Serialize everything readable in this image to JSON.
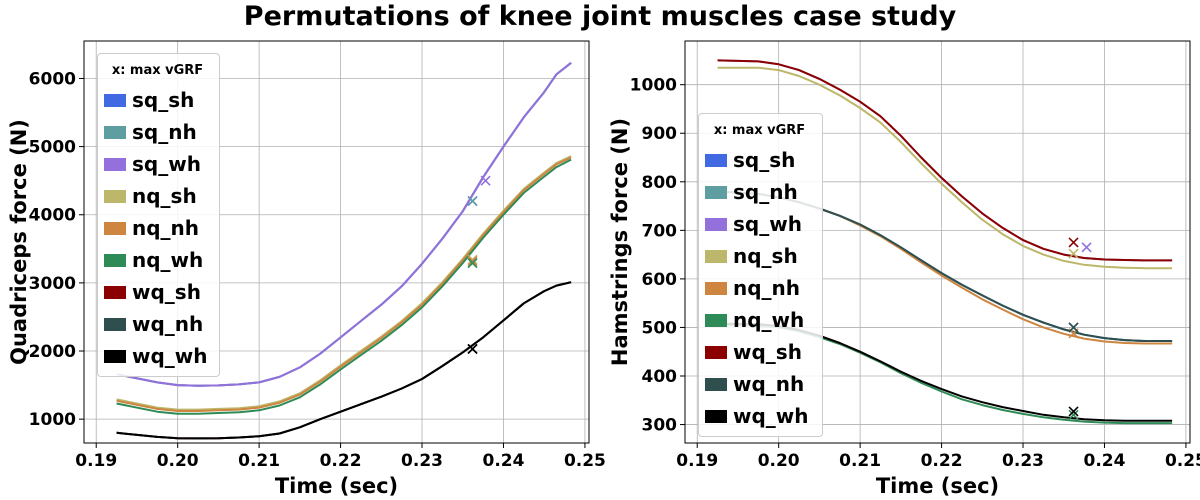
{
  "title": "Permutations of knee joint muscles case study",
  "legend": {
    "title": "x: max vGRF",
    "entries": [
      {
        "label": "sq_sh",
        "color": "#4169e1"
      },
      {
        "label": "sq_nh",
        "color": "#5f9ea0"
      },
      {
        "label": "sq_wh",
        "color": "#9370db"
      },
      {
        "label": "nq_sh",
        "color": "#bdb76b"
      },
      {
        "label": "nq_nh",
        "color": "#cd853f"
      },
      {
        "label": "nq_wh",
        "color": "#2e8b57"
      },
      {
        "label": "wq_sh",
        "color": "#8b0000"
      },
      {
        "label": "wq_nh",
        "color": "#2f4f4f"
      },
      {
        "label": "wq_wh",
        "color": "#000000"
      }
    ]
  },
  "chart_data": [
    {
      "type": "line",
      "xlabel": "Time (sec)",
      "ylabel": "Quadriceps force (N)",
      "xlim": [
        0.1885,
        0.2505
      ],
      "ylim": [
        650,
        6550
      ],
      "xticks": [
        0.19,
        0.2,
        0.21,
        0.22,
        0.23,
        0.24,
        0.25
      ],
      "xtick_labels": [
        "0.19",
        "0.20",
        "0.21",
        "0.22",
        "0.23",
        "0.24",
        "0.25"
      ],
      "yticks": [
        1000,
        2000,
        3000,
        4000,
        5000,
        6000
      ],
      "ytick_labels": [
        "1000",
        "2000",
        "3000",
        "4000",
        "5000",
        "6000"
      ],
      "grid": true,
      "legend_position": "upper-left",
      "x": [
        0.1925,
        0.1975,
        0.2,
        0.2025,
        0.205,
        0.2075,
        0.21,
        0.2125,
        0.215,
        0.2175,
        0.22,
        0.2225,
        0.225,
        0.2275,
        0.23,
        0.2325,
        0.235,
        0.2375,
        0.24,
        0.2425,
        0.245,
        0.2465,
        0.2483
      ],
      "series": [
        {
          "name": "sq_sh",
          "values": [
            1660,
            1540,
            1500,
            1490,
            1495,
            1510,
            1540,
            1620,
            1760,
            1960,
            2200,
            2440,
            2680,
            2950,
            3280,
            3650,
            4050,
            4550,
            5000,
            5430,
            5800,
            6060,
            6230
          ],
          "marker": [
            0.2362,
            4200
          ]
        },
        {
          "name": "sq_nh",
          "values": [
            1660,
            1540,
            1500,
            1490,
            1495,
            1510,
            1540,
            1620,
            1760,
            1960,
            2200,
            2440,
            2680,
            2950,
            3280,
            3650,
            4050,
            4550,
            5000,
            5430,
            5800,
            6060,
            6230
          ],
          "marker": [
            0.2362,
            4200
          ]
        },
        {
          "name": "sq_wh",
          "values": [
            1660,
            1540,
            1500,
            1490,
            1495,
            1510,
            1540,
            1620,
            1760,
            1960,
            2200,
            2440,
            2680,
            2950,
            3280,
            3650,
            4050,
            4550,
            5000,
            5430,
            5800,
            6060,
            6230
          ],
          "marker": [
            0.2378,
            4500
          ]
        },
        {
          "name": "nq_sh",
          "values": [
            1290,
            1170,
            1140,
            1140,
            1150,
            1160,
            1190,
            1260,
            1380,
            1570,
            1790,
            2000,
            2210,
            2440,
            2700,
            3010,
            3350,
            3720,
            4060,
            4380,
            4620,
            4760,
            4860
          ],
          "marker": [
            0.2362,
            3340
          ]
        },
        {
          "name": "nq_nh",
          "values": [
            1270,
            1150,
            1120,
            1120,
            1130,
            1140,
            1170,
            1240,
            1360,
            1550,
            1770,
            1980,
            2190,
            2420,
            2680,
            2990,
            3330,
            3700,
            4040,
            4360,
            4600,
            4740,
            4840
          ],
          "marker": [
            0.2362,
            3320
          ]
        },
        {
          "name": "nq_wh",
          "values": [
            1230,
            1110,
            1080,
            1080,
            1090,
            1100,
            1130,
            1200,
            1320,
            1510,
            1730,
            1940,
            2150,
            2380,
            2640,
            2950,
            3290,
            3660,
            4000,
            4320,
            4560,
            4700,
            4810
          ],
          "marker": [
            0.2362,
            3290
          ]
        },
        {
          "name": "wq_sh",
          "values": [
            800,
            740,
            720,
            718,
            720,
            730,
            750,
            790,
            880,
            1000,
            1110,
            1220,
            1330,
            1450,
            1590,
            1780,
            1980,
            2200,
            2450,
            2700,
            2880,
            2960,
            3010
          ],
          "marker": [
            0.2362,
            2030
          ]
        },
        {
          "name": "wq_nh",
          "values": [
            800,
            740,
            720,
            718,
            720,
            730,
            750,
            790,
            880,
            1000,
            1110,
            1220,
            1330,
            1450,
            1590,
            1780,
            1980,
            2200,
            2450,
            2700,
            2880,
            2960,
            3010
          ],
          "marker": [
            0.2362,
            2030
          ]
        },
        {
          "name": "wq_wh",
          "values": [
            800,
            740,
            720,
            718,
            720,
            730,
            750,
            790,
            880,
            1000,
            1110,
            1220,
            1330,
            1450,
            1590,
            1780,
            1980,
            2200,
            2450,
            2700,
            2880,
            2960,
            3010
          ],
          "marker": [
            0.2362,
            2030
          ]
        }
      ]
    },
    {
      "type": "line",
      "xlabel": "Time (sec)",
      "ylabel": "Hamstrings force (N)",
      "xlim": [
        0.1885,
        0.2505
      ],
      "ylim": [
        262,
        1090
      ],
      "xticks": [
        0.19,
        0.2,
        0.21,
        0.22,
        0.23,
        0.24,
        0.25
      ],
      "xtick_labels": [
        "0.19",
        "0.20",
        "0.21",
        "0.22",
        "0.23",
        "0.24",
        "0.25"
      ],
      "yticks": [
        300,
        400,
        500,
        600,
        700,
        800,
        900,
        1000
      ],
      "ytick_labels": [
        "300",
        "400",
        "500",
        "600",
        "700",
        "800",
        "900",
        "1000"
      ],
      "grid": true,
      "legend_position": "center-left",
      "x": [
        0.1925,
        0.1975,
        0.2,
        0.2025,
        0.205,
        0.2075,
        0.21,
        0.2125,
        0.215,
        0.2175,
        0.22,
        0.2225,
        0.225,
        0.2275,
        0.23,
        0.2325,
        0.235,
        0.2375,
        0.24,
        0.2425,
        0.245,
        0.2465,
        0.2483
      ],
      "series": [
        {
          "name": "sq_sh",
          "values": [
            780,
            775,
            768,
            758,
            745,
            730,
            712,
            690,
            665,
            638,
            612,
            588,
            566,
            545,
            526,
            510,
            496,
            485,
            478,
            474,
            472,
            472,
            472
          ],
          "marker": [
            0.2362,
            500
          ]
        },
        {
          "name": "sq_nh",
          "values": [
            780,
            775,
            768,
            758,
            745,
            730,
            712,
            690,
            665,
            638,
            612,
            588,
            566,
            545,
            526,
            510,
            496,
            485,
            478,
            474,
            472,
            472,
            472
          ],
          "marker": [
            0.2362,
            500
          ]
        },
        {
          "name": "sq_wh",
          "values": [
            1050,
            1048,
            1042,
            1030,
            1012,
            990,
            965,
            935,
            895,
            850,
            808,
            770,
            735,
            705,
            680,
            662,
            650,
            643,
            640,
            639,
            638,
            638,
            638
          ],
          "marker": [
            0.2378,
            665
          ]
        },
        {
          "name": "nq_sh",
          "values": [
            1035,
            1035,
            1030,
            1018,
            1000,
            978,
            952,
            922,
            882,
            838,
            796,
            758,
            722,
            692,
            668,
            650,
            637,
            629,
            625,
            623,
            622,
            622,
            622
          ],
          "marker": [
            0.2362,
            652
          ]
        },
        {
          "name": "nq_nh",
          "values": [
            780,
            775,
            768,
            758,
            745,
            730,
            710,
            688,
            662,
            634,
            607,
            582,
            558,
            537,
            517,
            500,
            487,
            477,
            471,
            468,
            467,
            467,
            467
          ],
          "marker": [
            0.2362,
            488
          ]
        },
        {
          "name": "nq_wh",
          "values": [
            505,
            504,
            500,
            492,
            480,
            466,
            448,
            428,
            406,
            386,
            368,
            352,
            340,
            330,
            322,
            315,
            310,
            306,
            304,
            303,
            303,
            303,
            303
          ],
          "marker": [
            0.2362,
            320
          ]
        },
        {
          "name": "wq_sh",
          "values": [
            1050,
            1048,
            1042,
            1030,
            1012,
            990,
            965,
            935,
            895,
            850,
            808,
            770,
            735,
            705,
            680,
            662,
            650,
            643,
            640,
            639,
            638,
            638,
            638
          ],
          "marker": [
            0.2362,
            675
          ]
        },
        {
          "name": "wq_nh",
          "values": [
            780,
            775,
            768,
            758,
            745,
            730,
            712,
            690,
            665,
            638,
            612,
            588,
            566,
            545,
            526,
            510,
            496,
            485,
            478,
            474,
            472,
            472,
            472
          ],
          "marker": [
            0.2362,
            500
          ]
        },
        {
          "name": "wq_wh",
          "values": [
            508,
            507,
            503,
            495,
            483,
            468,
            450,
            430,
            409,
            390,
            373,
            358,
            346,
            336,
            328,
            320,
            315,
            311,
            309,
            308,
            308,
            308,
            308
          ],
          "marker": [
            0.2362,
            327
          ]
        }
      ]
    }
  ]
}
